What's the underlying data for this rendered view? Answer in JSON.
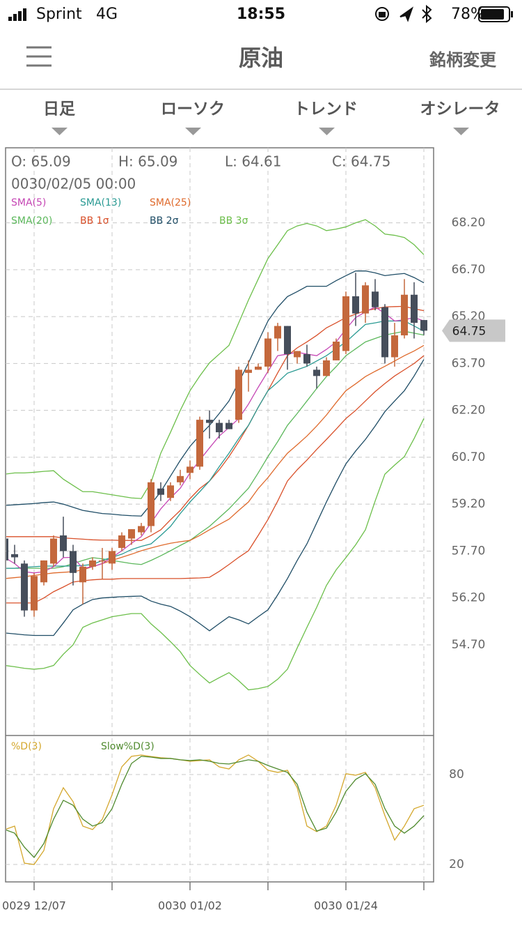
{
  "status_bar": {
    "carrier": "Sprint",
    "network": "4G",
    "time": "18:55",
    "battery": "78%"
  },
  "header": {
    "title": "原油",
    "right_button": "銘柄変更"
  },
  "tabs": [
    "日足",
    "ローソク",
    "トレンド",
    "オシレータ"
  ],
  "ohlc_readout": {
    "open": "O: 65.09",
    "high": "H: 65.09",
    "low": "L: 64.61",
    "close": "C: 64.75",
    "datetime": "0030/02/05 00:00"
  },
  "chart_data": [
    {
      "type": "candlestick",
      "categories": [
        null,
        null,
        null,
        "0029 12/07",
        null,
        null,
        null,
        null,
        null,
        null,
        null,
        null,
        null,
        null,
        null,
        null,
        null,
        null,
        null,
        "0030 01/02",
        null,
        null,
        null,
        null,
        null,
        null,
        null,
        null,
        null,
        null,
        null,
        null,
        null,
        null,
        null,
        "0030 01/24",
        null,
        null,
        null,
        null,
        null,
        null,
        null,
        null
      ],
      "open": [
        58.1,
        57.6,
        57.3,
        55.8,
        56.7,
        57.3,
        58.2,
        57.7,
        56.7,
        57.2,
        57.4,
        57.3,
        57.8,
        58.1,
        58.3,
        58.5,
        59.7,
        59.4,
        59.9,
        60.2,
        60.4,
        61.9,
        61.8,
        61.8,
        61.9,
        63.4,
        63.5,
        63.6,
        64.5,
        64.9,
        63.9,
        64.0,
        63.5,
        63.3,
        63.8,
        64.1,
        65.85,
        65.3,
        66.0,
        65.5,
        63.9,
        64.6,
        65.9,
        65.09
      ],
      "high": [
        58.2,
        57.9,
        57.4,
        57.0,
        57.4,
        58.2,
        58.8,
        57.9,
        57.3,
        57.5,
        57.8,
        57.8,
        58.3,
        58.4,
        58.6,
        60.0,
        59.9,
        59.9,
        60.3,
        60.6,
        62.0,
        62.2,
        61.9,
        61.9,
        63.6,
        63.8,
        63.7,
        64.7,
        65.0,
        64.9,
        64.1,
        64.3,
        63.6,
        63.9,
        64.5,
        66.0,
        66.6,
        66.3,
        66.4,
        65.6,
        65.0,
        66.4,
        66.3,
        65.09
      ],
      "low": [
        57.3,
        57.3,
        55.6,
        55.6,
        56.6,
        57.2,
        57.5,
        56.6,
        56.0,
        57.1,
        56.8,
        57.1,
        57.7,
        57.9,
        58.2,
        58.3,
        59.3,
        59.3,
        59.8,
        60.0,
        60.3,
        61.3,
        61.3,
        61.6,
        61.8,
        62.8,
        63.5,
        63.4,
        64.1,
        63.5,
        63.7,
        63.6,
        62.9,
        63.3,
        63.8,
        64.0,
        64.9,
        65.0,
        65.4,
        63.7,
        63.6,
        64.5,
        64.5,
        64.61
      ],
      "close": [
        57.4,
        57.5,
        55.8,
        56.9,
        57.4,
        58.1,
        57.7,
        57.0,
        57.2,
        57.4,
        57.4,
        57.7,
        58.2,
        58.4,
        58.5,
        59.9,
        59.5,
        59.8,
        60.1,
        60.4,
        61.9,
        61.8,
        61.5,
        61.6,
        63.5,
        63.5,
        63.6,
        64.5,
        64.9,
        64.0,
        64.1,
        63.7,
        63.3,
        63.8,
        64.4,
        65.85,
        65.3,
        66.2,
        65.5,
        63.9,
        64.6,
        65.9,
        65.0,
        64.75
      ],
      "up_color": "#c4683c",
      "down_color": "#464e5b",
      "series": [
        {
          "name": "SMA(5)",
          "color": "#c546b4",
          "values": [
            57.49,
            57.3,
            57.04,
            57.0,
            57.04,
            57.2,
            57.49,
            57.5,
            57.15,
            57.2,
            57.3,
            57.5,
            57.71,
            57.95,
            58.16,
            58.6,
            59.05,
            59.4,
            59.71,
            60.2,
            60.61,
            61.0,
            61.38,
            61.65,
            61.94,
            62.4,
            62.94,
            63.45,
            63.95,
            64.0,
            64.06,
            64.0,
            63.95,
            64.15,
            64.39,
            64.8,
            65.17,
            65.35,
            65.51,
            65.3,
            65.06,
            65.1,
            65.17,
            65.06
          ]
        },
        {
          "name": "SMA(13)",
          "color": "#2a9a93",
          "values": [
            57.15,
            57.15,
            57.18,
            57.2,
            57.22,
            57.22,
            57.22,
            57.22,
            57.24,
            57.27,
            57.4,
            57.5,
            57.6,
            57.75,
            57.85,
            57.93,
            58.2,
            58.49,
            58.9,
            59.27,
            59.6,
            59.94,
            60.4,
            60.83,
            61.3,
            61.72,
            62.3,
            62.83,
            63.1,
            63.39,
            63.5,
            63.61,
            63.78,
            63.95,
            64.17,
            64.39,
            64.67,
            64.95,
            65.0,
            65.06,
            65.06,
            65.06,
            64.9,
            64.73
          ]
        },
        {
          "name": "SMA(25)",
          "color": "#df6a2c",
          "values": [
            56.82,
            56.85,
            56.88,
            56.92,
            56.96,
            57.0,
            57.02,
            57.04,
            57.1,
            57.2,
            57.3,
            57.4,
            57.5,
            57.6,
            57.71,
            57.8,
            57.88,
            57.95,
            58.0,
            58.04,
            58.2,
            58.38,
            58.55,
            58.72,
            59.0,
            59.27,
            59.7,
            60.05,
            60.45,
            60.83,
            61.1,
            61.38,
            61.7,
            62.05,
            62.45,
            62.83,
            63.05,
            63.28,
            63.45,
            63.61,
            63.78,
            63.95,
            64.1,
            64.28
          ]
        },
        {
          "name": "SMA(20)",
          "color": "#5cb85c",
          "values": [
            57.15,
            57.15,
            57.15,
            57.15,
            57.15,
            57.15,
            57.2,
            57.3,
            57.4,
            57.49,
            57.45,
            57.4,
            57.35,
            57.3,
            57.27,
            57.4,
            57.55,
            57.71,
            57.88,
            58.04,
            58.27,
            58.49,
            58.77,
            59.05,
            59.38,
            59.71,
            60.2,
            60.72,
            61.2,
            61.72,
            62.1,
            62.5,
            62.9,
            63.28,
            63.6,
            63.95,
            64.17,
            64.39,
            64.5,
            64.61,
            64.67,
            64.73,
            64.67,
            64.61
          ]
        },
        {
          "name": "BB 1σ",
          "color": "#d9502a",
          "upper": [
            58.16,
            58.16,
            58.16,
            58.16,
            58.16,
            58.16,
            58.12,
            58.1,
            58.08,
            58.06,
            58.05,
            58.05,
            58.04,
            58.04,
            58.04,
            58.2,
            58.38,
            58.7,
            59.0,
            59.38,
            59.7,
            59.94,
            60.3,
            60.72,
            61.2,
            61.72,
            62.3,
            62.83,
            63.4,
            63.95,
            64.2,
            64.39,
            64.6,
            64.84,
            65.0,
            65.17,
            65.28,
            65.39,
            65.45,
            65.51,
            65.52,
            65.53,
            65.45,
            65.39
          ],
          "lower": [
            56.04,
            56.04,
            56.04,
            56.04,
            56.2,
            56.4,
            56.55,
            56.71,
            56.75,
            56.78,
            56.8,
            56.8,
            56.82,
            56.82,
            56.82,
            56.82,
            56.82,
            56.82,
            56.82,
            56.83,
            56.84,
            56.86,
            57.05,
            57.27,
            57.5,
            57.71,
            58.2,
            58.71,
            59.3,
            59.94,
            60.3,
            60.61,
            60.95,
            61.27,
            61.6,
            61.94,
            62.2,
            62.5,
            62.8,
            63.06,
            63.3,
            63.5,
            63.7,
            63.95
          ]
        },
        {
          "name": "BB 2σ",
          "color": "#1f4d66",
          "upper": [
            59.16,
            59.18,
            59.2,
            59.22,
            59.25,
            59.27,
            59.2,
            59.1,
            59.0,
            58.95,
            58.9,
            58.88,
            58.85,
            58.83,
            58.82,
            59.2,
            59.6,
            60.1,
            60.6,
            61.05,
            61.4,
            61.72,
            62.1,
            62.5,
            63.1,
            63.72,
            64.4,
            65.06,
            65.5,
            65.84,
            66.0,
            66.17,
            66.17,
            66.17,
            66.35,
            66.51,
            66.66,
            66.66,
            66.6,
            66.51,
            66.55,
            66.58,
            66.45,
            66.28
          ],
          "lower": [
            55.08,
            55.05,
            55.02,
            55.0,
            55.0,
            55.0,
            55.4,
            55.82,
            56.0,
            56.15,
            56.2,
            56.22,
            56.24,
            56.25,
            56.26,
            56.1,
            56.0,
            55.93,
            55.78,
            55.6,
            55.38,
            55.15,
            55.38,
            55.6,
            55.5,
            55.37,
            55.6,
            55.82,
            56.3,
            56.82,
            57.4,
            57.93,
            58.6,
            59.27,
            59.9,
            60.49,
            60.9,
            61.27,
            61.7,
            62.16,
            62.5,
            62.83,
            63.3,
            63.83
          ]
        },
        {
          "name": "BB 3σ",
          "color": "#6cbf4a",
          "upper": [
            60.16,
            60.2,
            60.2,
            60.22,
            60.25,
            60.27,
            60.0,
            59.8,
            59.6,
            59.6,
            59.55,
            59.5,
            59.45,
            59.4,
            59.38,
            59.9,
            60.83,
            61.5,
            62.2,
            62.83,
            63.3,
            63.72,
            64.0,
            64.28,
            65.0,
            65.73,
            66.4,
            67.06,
            67.5,
            67.95,
            68.1,
            68.18,
            68.1,
            67.95,
            68.0,
            68.07,
            68.2,
            68.3,
            68.1,
            67.84,
            67.8,
            67.73,
            67.5,
            67.18
          ],
          "lower": [
            54.04,
            54.0,
            53.95,
            53.92,
            53.95,
            54.04,
            54.4,
            54.7,
            55.26,
            55.4,
            55.5,
            55.6,
            55.65,
            55.7,
            55.7,
            55.37,
            55.1,
            54.8,
            54.48,
            54.04,
            53.75,
            53.48,
            53.65,
            53.81,
            53.55,
            53.26,
            53.3,
            53.37,
            53.6,
            53.92,
            54.6,
            55.26,
            55.9,
            56.6,
            57.1,
            57.49,
            57.9,
            58.38,
            59.3,
            60.16,
            60.45,
            60.72,
            61.3,
            61.94
          ]
        }
      ],
      "ylim": [
        51.8,
        70.6
      ],
      "yticks": [
        {
          "value": 54.7,
          "label": "54.70"
        },
        {
          "value": 56.2,
          "label": "56.20"
        },
        {
          "value": 57.7,
          "label": "57.70"
        },
        {
          "value": 59.2,
          "label": "59.20"
        },
        {
          "value": 60.7,
          "label": "60.70"
        },
        {
          "value": 62.2,
          "label": "62.20"
        },
        {
          "value": 63.7,
          "label": "63.70"
        },
        {
          "value": 65.2,
          "label": "65.20"
        },
        {
          "value": 66.7,
          "label": "66.70"
        },
        {
          "value": 68.2,
          "label": "68.20"
        }
      ],
      "last_price": 64.75,
      "grid": true
    },
    {
      "type": "line",
      "series": [
        {
          "name": "%D(3)",
          "color": "#d4a72c",
          "values": [
            43.3,
            45.6,
            20.9,
            20.0,
            29.3,
            57.2,
            71.2,
            61.9,
            45.6,
            43.3,
            50.2,
            66.5,
            85.1,
            92.1,
            93.0,
            92.0,
            91.2,
            90.7,
            89.8,
            88.8,
            89.3,
            89.8,
            85.1,
            83.7,
            89.8,
            93.0,
            88.8,
            82.8,
            81.4,
            82.8,
            71.2,
            45.6,
            41.9,
            45.6,
            59.5,
            80.5,
            79.5,
            81.4,
            71.2,
            52.6,
            36.3,
            45.6,
            57.2,
            59.5
          ]
        },
        {
          "name": "Slow%D(3)",
          "color": "#4f8a2e",
          "values": [
            43.3,
            40.9,
            31.6,
            24.7,
            34.0,
            50.2,
            62.8,
            59.5,
            50.2,
            45.6,
            47.9,
            57.2,
            73.5,
            87.4,
            92.1,
            91.6,
            90.7,
            90.7,
            89.8,
            89.3,
            89.8,
            88.8,
            87.4,
            87.0,
            88.4,
            89.8,
            88.8,
            86.0,
            83.7,
            81.4,
            73.5,
            54.9,
            42.3,
            44.2,
            54.9,
            68.8,
            76.7,
            80.5,
            73.5,
            57.2,
            45.6,
            40.9,
            45.6,
            52.6
          ]
        }
      ],
      "ylim": [
        8.4,
        106
      ],
      "yticks": [
        80,
        20
      ],
      "grid": true
    }
  ]
}
